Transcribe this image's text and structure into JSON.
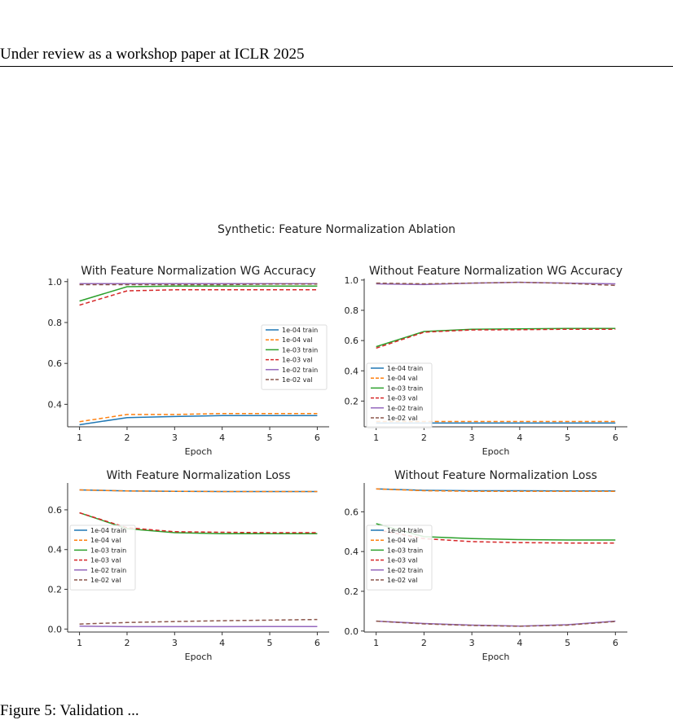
{
  "header": {
    "text": "Under review as a workshop paper at ICLR 2025"
  },
  "figure": {
    "suptitle": "Synthetic: Feature Normalization Ablation"
  },
  "caption": {
    "text": "Figure 5: Validation ..."
  },
  "colors": {
    "1e-04 train": "#1f77b4",
    "1e-04 val": "#ff7f0e",
    "1e-03 train": "#2ca02c",
    "1e-03 val": "#d62728",
    "1e-02 train": "#9467bd",
    "1e-02 val": "#8c564b"
  },
  "chart_data": [
    {
      "type": "line",
      "title": "With Feature Normalization WG Accuracy",
      "xlabel": "Epoch",
      "ylabel": "",
      "x": [
        1,
        2,
        3,
        4,
        5,
        6
      ],
      "xticks": [
        1,
        2,
        3,
        4,
        5,
        6
      ],
      "ylim": [
        0.29,
        1.015
      ],
      "yticks": [
        0.4,
        0.6,
        0.8,
        1.0
      ],
      "legend_position": "center-right",
      "series": [
        {
          "name": "1e-04 train",
          "values": [
            0.3,
            0.335,
            0.34,
            0.345,
            0.345,
            0.345
          ]
        },
        {
          "name": "1e-04 val",
          "values": [
            0.315,
            0.35,
            0.35,
            0.355,
            0.355,
            0.355
          ]
        },
        {
          "name": "1e-03 train",
          "values": [
            0.905,
            0.975,
            0.978,
            0.978,
            0.978,
            0.978
          ]
        },
        {
          "name": "1e-03 val",
          "values": [
            0.885,
            0.955,
            0.96,
            0.96,
            0.96,
            0.96
          ]
        },
        {
          "name": "1e-02 train",
          "values": [
            0.99,
            0.99,
            0.99,
            0.99,
            0.99,
            0.99
          ]
        },
        {
          "name": "1e-02 val",
          "values": [
            0.985,
            0.985,
            0.985,
            0.985,
            0.988,
            0.988
          ]
        }
      ]
    },
    {
      "type": "line",
      "title": "Without Feature Normalization WG Accuracy",
      "xlabel": "Epoch",
      "ylabel": "",
      "x": [
        1,
        2,
        3,
        4,
        5,
        6
      ],
      "xticks": [
        1,
        2,
        3,
        4,
        5,
        6
      ],
      "ylim": [
        0.03,
        1.01
      ],
      "yticks": [
        0.2,
        0.4,
        0.6,
        0.8,
        1.0
      ],
      "legend_position": "lower-left",
      "series": [
        {
          "name": "1e-04 train",
          "values": [
            0.055,
            0.055,
            0.055,
            0.055,
            0.055,
            0.055
          ]
        },
        {
          "name": "1e-04 val",
          "values": [
            0.065,
            0.065,
            0.065,
            0.065,
            0.065,
            0.065
          ]
        },
        {
          "name": "1e-03 train",
          "values": [
            0.56,
            0.66,
            0.675,
            0.678,
            0.68,
            0.68
          ]
        },
        {
          "name": "1e-03 val",
          "values": [
            0.55,
            0.655,
            0.67,
            0.672,
            0.675,
            0.675
          ]
        },
        {
          "name": "1e-02 train",
          "values": [
            0.975,
            0.97,
            0.98,
            0.985,
            0.98,
            0.975
          ]
        },
        {
          "name": "1e-02 val",
          "values": [
            0.98,
            0.975,
            0.98,
            0.985,
            0.978,
            0.965
          ]
        }
      ]
    },
    {
      "type": "line",
      "title": "With Feature Normalization Loss",
      "xlabel": "Epoch",
      "ylabel": "",
      "x": [
        1,
        2,
        3,
        4,
        5,
        6
      ],
      "xticks": [
        1,
        2,
        3,
        4,
        5,
        6
      ],
      "ylim": [
        -0.015,
        0.735
      ],
      "yticks": [
        0.0,
        0.2,
        0.4,
        0.6
      ],
      "legend_position": "center-left",
      "series": [
        {
          "name": "1e-04 train",
          "values": [
            0.7,
            0.695,
            0.693,
            0.692,
            0.692,
            0.692
          ]
        },
        {
          "name": "1e-04 val",
          "values": [
            0.7,
            0.695,
            0.693,
            0.692,
            0.692,
            0.692
          ]
        },
        {
          "name": "1e-03 train",
          "values": [
            0.585,
            0.505,
            0.485,
            0.48,
            0.48,
            0.48
          ]
        },
        {
          "name": "1e-03 val",
          "values": [
            0.585,
            0.51,
            0.49,
            0.487,
            0.485,
            0.485
          ]
        },
        {
          "name": "1e-02 train",
          "values": [
            0.015,
            0.012,
            0.012,
            0.012,
            0.013,
            0.013
          ]
        },
        {
          "name": "1e-02 val",
          "values": [
            0.025,
            0.033,
            0.038,
            0.042,
            0.045,
            0.048
          ]
        }
      ]
    },
    {
      "type": "line",
      "title": "Without Feature Normalization Loss",
      "xlabel": "Epoch",
      "ylabel": "",
      "x": [
        1,
        2,
        3,
        4,
        5,
        6
      ],
      "xticks": [
        1,
        2,
        3,
        4,
        5,
        6
      ],
      "ylim": [
        -0.005,
        0.745
      ],
      "yticks": [
        0.0,
        0.2,
        0.4,
        0.6
      ],
      "legend_position": "center-left",
      "series": [
        {
          "name": "1e-04 train",
          "values": [
            0.715,
            0.708,
            0.706,
            0.706,
            0.705,
            0.705
          ]
        },
        {
          "name": "1e-04 val",
          "values": [
            0.715,
            0.706,
            0.703,
            0.703,
            0.703,
            0.703
          ]
        },
        {
          "name": "1e-03 train",
          "values": [
            0.54,
            0.475,
            0.465,
            0.46,
            0.458,
            0.458
          ]
        },
        {
          "name": "1e-03 val",
          "values": [
            0.51,
            0.465,
            0.45,
            0.445,
            0.443,
            0.443
          ]
        },
        {
          "name": "1e-02 train",
          "values": [
            0.05,
            0.038,
            0.03,
            0.025,
            0.032,
            0.05
          ]
        },
        {
          "name": "1e-02 val",
          "values": [
            0.05,
            0.036,
            0.028,
            0.024,
            0.03,
            0.048
          ]
        }
      ]
    }
  ]
}
